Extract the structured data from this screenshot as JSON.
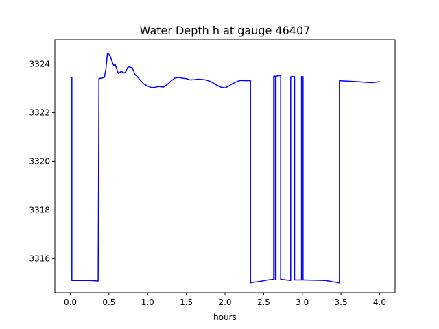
{
  "chart_data": {
    "type": "line",
    "title": "Water Depth h at gauge 46407",
    "xlabel": "hours",
    "ylabel": "",
    "xlim": [
      -0.2,
      4.2
    ],
    "ylim": [
      3314.6,
      3325.0
    ],
    "xticks": [
      0.0,
      0.5,
      1.0,
      1.5,
      2.0,
      2.5,
      3.0,
      3.5,
      4.0
    ],
    "xtick_labels": [
      "0.0",
      "0.5",
      "1.0",
      "1.5",
      "2.0",
      "2.5",
      "3.0",
      "3.5",
      "4.0"
    ],
    "yticks": [
      3316,
      3318,
      3320,
      3322,
      3324
    ],
    "ytick_labels": [
      "3316",
      "3318",
      "3320",
      "3322",
      "3324"
    ],
    "grid": false,
    "series": [
      {
        "color": "#0000ff",
        "x": [
          0.0,
          0.02,
          0.02,
          0.25,
          0.36,
          0.37,
          0.44,
          0.46,
          0.48,
          0.5,
          0.52,
          0.54,
          0.56,
          0.58,
          0.6,
          0.62,
          0.64,
          0.66,
          0.68,
          0.7,
          0.72,
          0.74,
          0.76,
          0.8,
          0.82,
          0.84,
          0.86,
          0.9,
          0.95,
          1.0,
          1.05,
          1.1,
          1.15,
          1.2,
          1.25,
          1.3,
          1.35,
          1.4,
          1.45,
          1.5,
          1.55,
          1.6,
          1.65,
          1.7,
          1.75,
          1.8,
          1.85,
          1.9,
          1.95,
          2.0,
          2.05,
          2.1,
          2.15,
          2.2,
          2.25,
          2.33,
          2.33,
          2.35,
          2.45,
          2.55,
          2.63,
          2.63,
          2.65,
          2.65,
          2.66,
          2.66,
          2.67,
          2.68,
          2.72,
          2.72,
          2.85,
          2.85,
          2.9,
          2.9,
          2.99,
          2.99,
          3.01,
          3.01,
          3.02,
          3.3,
          3.48,
          3.48,
          3.6,
          3.7,
          3.8,
          3.9,
          4.0
        ],
        "y": [
          3323.45,
          3323.45,
          3315.1,
          3315.1,
          3315.08,
          3323.4,
          3323.45,
          3323.8,
          3324.45,
          3324.4,
          3324.3,
          3324.1,
          3323.95,
          3323.98,
          3323.8,
          3323.62,
          3323.65,
          3323.7,
          3323.65,
          3323.63,
          3323.7,
          3323.85,
          3323.88,
          3323.85,
          3323.7,
          3323.55,
          3323.5,
          3323.35,
          3323.18,
          3323.1,
          3323.03,
          3323.05,
          3323.08,
          3323.05,
          3323.15,
          3323.3,
          3323.42,
          3323.45,
          3323.42,
          3323.4,
          3323.35,
          3323.36,
          3323.38,
          3323.37,
          3323.35,
          3323.3,
          3323.22,
          3323.12,
          3323.05,
          3323.02,
          3323.1,
          3323.2,
          3323.28,
          3323.33,
          3323.32,
          3323.32,
          3315.0,
          3315.02,
          3315.06,
          3315.12,
          3315.15,
          3323.5,
          3323.5,
          3315.15,
          3315.15,
          3323.5,
          3323.5,
          3323.52,
          3323.52,
          3315.15,
          3315.1,
          3323.48,
          3323.48,
          3315.12,
          3315.12,
          3323.48,
          3323.48,
          3315.12,
          3315.12,
          3315.1,
          3315.0,
          3323.32,
          3323.3,
          3323.28,
          3323.26,
          3323.24,
          3323.28
        ]
      }
    ]
  }
}
